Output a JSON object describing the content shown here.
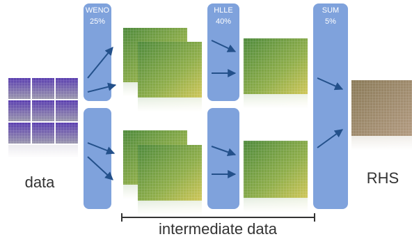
{
  "input": {
    "label": "data"
  },
  "stages": [
    {
      "name": "WENO",
      "share": "25%"
    },
    {
      "name": "HLLE",
      "share": "40%"
    },
    {
      "name": "SUM",
      "share": "5%"
    }
  ],
  "intermediate": {
    "label": "intermediate data"
  },
  "output": {
    "label": "RHS"
  }
}
